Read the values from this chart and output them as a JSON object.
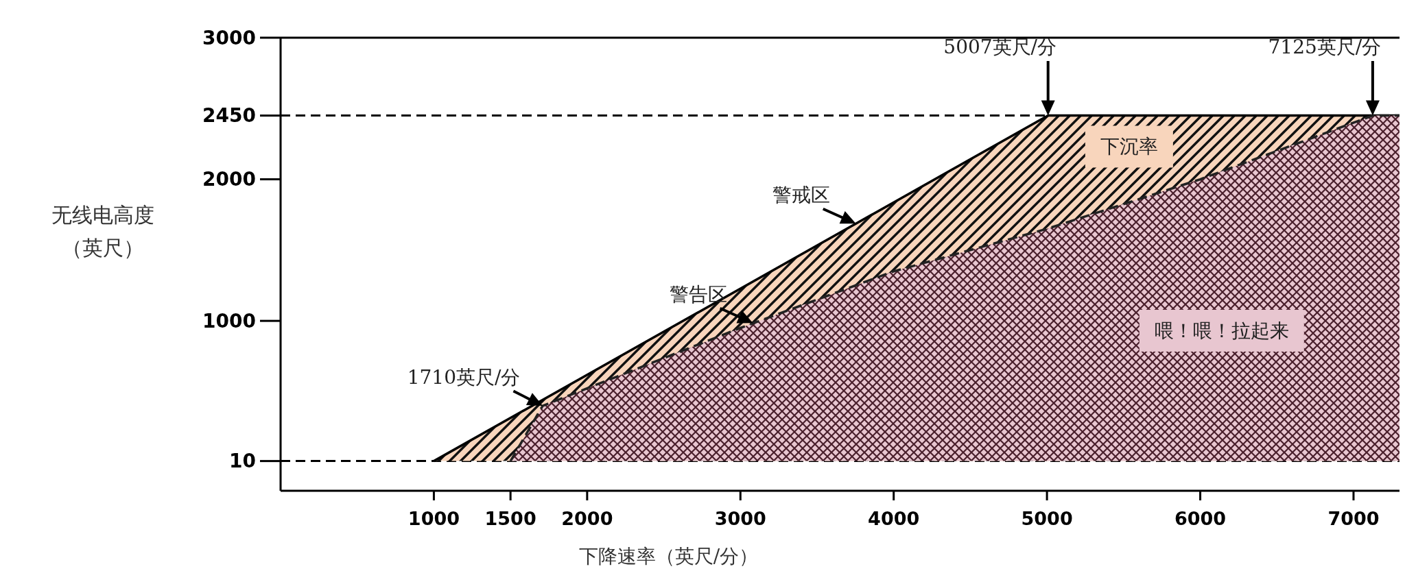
{
  "chart_data": {
    "type": "area",
    "xlabel": "下降速率（英尺/分）",
    "ylabel": "无线电高度（英尺）",
    "xlim": [
      0,
      7300
    ],
    "ylim": [
      -200,
      3000
    ],
    "xticks": [
      1000,
      1500,
      2000,
      3000,
      4000,
      5000,
      6000,
      7000
    ],
    "yticks": [
      10,
      1000,
      2000,
      2450,
      3000
    ],
    "series": [
      {
        "name": "下沉率",
        "color": "#f8d5bc",
        "x": [
          1000,
          5007,
          7300
        ],
        "values": [
          10,
          2450,
          2450
        ],
        "line_style": "solid"
      },
      {
        "name": "喂！喂！拉起来",
        "color": "#e8c6d0",
        "x": [
          1500,
          1710,
          3000,
          4000,
          5000,
          6000,
          7125,
          7300
        ],
        "values": [
          10,
          400,
          950,
          1350,
          1650,
          2000,
          2450,
          2450
        ],
        "line_style": "dashed"
      }
    ],
    "ref_lines": [
      {
        "axis": "y",
        "value": 10,
        "line_style": "dashed",
        "color": "#000000"
      },
      {
        "axis": "y",
        "value": 2450,
        "line_style": "dashed",
        "color": "#000000"
      }
    ],
    "annotations": [
      {
        "text": "警戒区",
        "x": 3754,
        "y": 1687
      },
      {
        "text": "警告区",
        "x": 3082,
        "y": 985
      },
      {
        "text": "1710英尺/分",
        "x": 1710,
        "y": 400
      },
      {
        "text": "5007英尺/分",
        "x": 5007,
        "y": 2450
      },
      {
        "text": "7125英尺/分",
        "x": 7125,
        "y": 2450
      }
    ]
  }
}
